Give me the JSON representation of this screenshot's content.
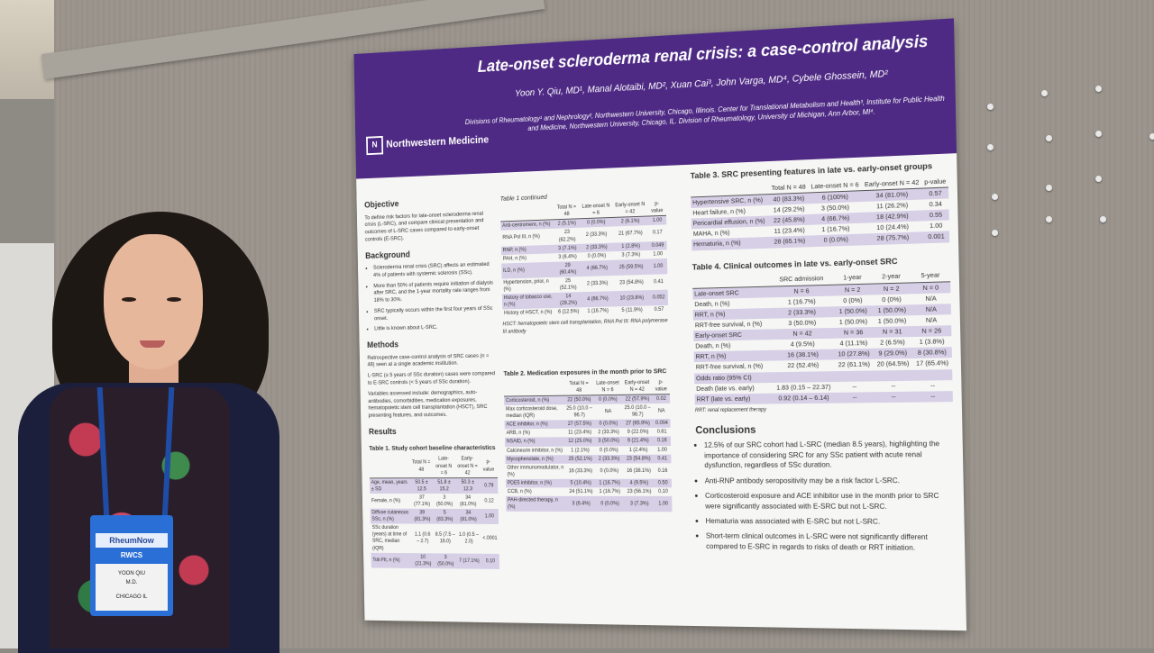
{
  "poster": {
    "title": "Late-onset scleroderma renal crisis: a case-control analysis",
    "authors": "Yoon Y. Qiu, MD¹, Manal Alotaibi, MD², Xuan Cai³, John Varga, MD⁴, Cybele Ghossein, MD²",
    "affiliations": "Divisions of Rheumatology¹ and Nephrology², Northwestern University, Chicago, Illinois. Center for Translational Metabolism and Health³, Institute for Public Health and Medicine, Northwestern University, Chicago, IL. Division of Rheumatology, University of Michigan, Ann Arbor, MI⁴.",
    "logo": "Northwestern Medicine",
    "objective": {
      "heading": "Objective",
      "text": "To define risk factors for late-onset scleroderma renal crisis (L-SRC), and compare clinical presentation and outcomes of L-SRC cases compared to early-onset controls (E-SRC)."
    },
    "background": {
      "heading": "Background",
      "items": [
        "Scleroderma renal crisis (SRC) affects an estimated 4% of patients with systemic sclerosis (SSc).",
        "More than 50% of patients require initiation of dialysis after SRC, and the 1-year mortality rate ranges from 18% to 30%.",
        "SRC typically occurs within the first four years of SSc onset.",
        "Little is known about L-SRC."
      ]
    },
    "methods": {
      "heading": "Methods",
      "paras": [
        "Retrospective case-control analysis of SRC cases (n = 48) seen at a single academic institution.",
        "L-SRC (≥ 5 years of SSc duration) cases were compared to E-SRC controls (< 5 years of SSc duration).",
        "Variables assessed include: demographics, auto-antibodies, comorbidities, medication exposures, hematopoietic stem cell transplantation (HSCT), SRC presenting features, and outcomes."
      ]
    },
    "results": {
      "heading": "Results",
      "table1_title": "Table 1. Study cohort baseline characteristics",
      "table1_head": [
        "",
        "Total N = 48",
        "Late-onset N = 6",
        "Early-onset N = 42",
        "p-value"
      ],
      "table1_rows": [
        [
          "Age, mean, years ± SD",
          "50.5 ± 12.5",
          "51.8 ± 15.2",
          "50.3 ± 12.3",
          "0.79"
        ],
        [
          "Female, n (%)",
          "37 (77.1%)",
          "3 (50.0%)",
          "34 (81.0%)",
          "0.12"
        ],
        [
          "Diffuse cutaneous SSc, n (%)",
          "39 (81.3%)",
          "5 (83.3%)",
          "34 (81.0%)",
          "1.00"
        ],
        [
          "SSc duration (years) at time of SRC, median (IQR)",
          "1.1 (0.6 – 2.7)",
          "8.5 (7.5 – 16.0)",
          "1.0 (0.5 – 2.0)",
          "<.0001"
        ],
        [
          "Tob Flt, n (%)",
          "10 (21.3%)",
          "3 (50.0%)",
          "7 (17.1%)",
          "0.10"
        ]
      ]
    },
    "table1c": {
      "title": "Table 1 continued",
      "head": [
        "",
        "Total N = 48",
        "Late-onset N = 6",
        "Early-onset N = 42",
        "p-value"
      ],
      "rows": [
        [
          "Anti-centromere, n (%)",
          "2 (5.1%)",
          "0 (0.0%)",
          "2 (6.1%)",
          "1.00"
        ],
        [
          "RNA Pol III, n (%)",
          "23 (62.2%)",
          "2 (33.3%)",
          "21 (67.7%)",
          "0.17"
        ],
        [
          "RNP, n (%)",
          "3 (7.1%)",
          "2 (33.3%)",
          "1 (2.8%)",
          "0.049"
        ],
        [
          "PAH, n (%)",
          "3 (6.4%)",
          "0 (0.0%)",
          "3 (7.3%)",
          "1.00"
        ],
        [
          "ILD, n (%)",
          "29 (60.4%)",
          "4 (66.7%)",
          "25 (59.5%)",
          "1.00"
        ],
        [
          "Hypertension, prior, n (%)",
          "25 (52.1%)",
          "2 (33.3%)",
          "23 (54.8%)",
          "0.41"
        ],
        [
          "History of tobacco use, n (%)",
          "14 (29.2%)",
          "4 (66.7%)",
          "10 (23.8%)",
          "0.052"
        ],
        [
          "History of HSCT, n (%)",
          "6 (12.5%)",
          "1 (16.7%)",
          "5 (11.9%)",
          "0.57"
        ]
      ],
      "footnote": "HSCT: hematopoietic stem cell transplantation, RNA Pol III: RNA polymerase III antibody"
    },
    "table2": {
      "title": "Table 2. Medication exposures in the month prior to SRC",
      "head": [
        "",
        "Total N = 48",
        "Late-onset N = 6",
        "Early-onset N = 42",
        "p-value"
      ],
      "rows": [
        [
          "Corticosteroid, n (%)",
          "22 (50.0%)",
          "0 (0.0%)",
          "22 (57.9%)",
          "0.02"
        ],
        [
          "Max corticosteroid dose, median (IQR)",
          "25.0 (10.0 – 96.7)",
          "NA",
          "25.0 (10.0 – 96.7)",
          "NA"
        ],
        [
          "ACE inhibitor, n (%)",
          "27 (57.5%)",
          "0 (0.0%)",
          "27 (65.9%)",
          "0.004"
        ],
        [
          "ARB, n (%)",
          "11 (23.4%)",
          "2 (33.3%)",
          "9 (22.0%)",
          "0.61"
        ],
        [
          "NSAID, n (%)",
          "12 (25.0%)",
          "3 (50.0%)",
          "9 (21.4%)",
          "0.16"
        ],
        [
          "Calcineurin inhibitor, n (%)",
          "1 (2.1%)",
          "0 (0.0%)",
          "1 (2.4%)",
          "1.00"
        ],
        [
          "Mycophenolate, n (%)",
          "25 (52.1%)",
          "2 (33.3%)",
          "23 (54.8%)",
          "0.41"
        ],
        [
          "Other immunomodulator, n (%)",
          "16 (33.3%)",
          "0 (0.0%)",
          "16 (38.1%)",
          "0.16"
        ],
        [
          "PDE5 inhibitor, n (%)",
          "5 (10.4%)",
          "1 (16.7%)",
          "4 (9.5%)",
          "0.50"
        ],
        [
          "CCB, n (%)",
          "24 (51.1%)",
          "1 (16.7%)",
          "23 (56.1%)",
          "0.10"
        ],
        [
          "PAH-directed therapy, n (%)",
          "3 (6.4%)",
          "0 (0.0%)",
          "3 (7.3%)",
          "1.00"
        ]
      ]
    },
    "table3": {
      "title": "Table 3. SRC presenting features in late vs. early-onset groups",
      "head": [
        "",
        "Total N = 48",
        "Late-onset N = 6",
        "Early-onset N = 42",
        "p-value"
      ],
      "rows": [
        [
          "Hypertensive SRC, n (%)",
          "40 (83.3%)",
          "6 (100%)",
          "34 (81.0%)",
          "0.57"
        ],
        [
          "Heart failure, n (%)",
          "14 (29.2%)",
          "3 (50.0%)",
          "11 (26.2%)",
          "0.34"
        ],
        [
          "Pericardial effusion, n (%)",
          "22 (45.8%)",
          "4 (66.7%)",
          "18 (42.9%)",
          "0.55"
        ],
        [
          "MAHA, n (%)",
          "11 (23.4%)",
          "1 (16.7%)",
          "10 (24.4%)",
          "1.00"
        ],
        [
          "Hematuria, n (%)",
          "28 (65.1%)",
          "0 (0.0%)",
          "28 (75.7%)",
          "0.001"
        ]
      ]
    },
    "table4": {
      "title": "Table 4. Clinical outcomes in late vs. early-onset SRC",
      "head": [
        "",
        "SRC admission",
        "1-year",
        "2-year",
        "5-year"
      ],
      "rows": [
        [
          "Late-onset SRC",
          "N = 6",
          "N = 2",
          "N = 2",
          "N = 0"
        ],
        [
          "Death, n (%)",
          "1 (16.7%)",
          "0 (0%)",
          "0 (0%)",
          "N/A"
        ],
        [
          "RRT, n (%)",
          "2 (33.3%)",
          "1 (50.0%)",
          "1 (50.0%)",
          "N/A"
        ],
        [
          "RRT-free survival, n (%)",
          "3 (50.0%)",
          "1 (50.0%)",
          "1 (50.0%)",
          "N/A"
        ],
        [
          "Early-onset SRC",
          "N = 42",
          "N = 36",
          "N = 31",
          "N = 26"
        ],
        [
          "Death, n (%)",
          "4 (9.5%)",
          "4 (11.1%)",
          "2 (6.5%)",
          "1 (3.8%)"
        ],
        [
          "RRT, n (%)",
          "16 (38.1%)",
          "10 (27.8%)",
          "9 (29.0%)",
          "8 (30.8%)"
        ],
        [
          "RRT-free survival, n (%)",
          "22 (52.4%)",
          "22 (61.1%)",
          "20 (64.5%)",
          "17 (65.4%)"
        ],
        [
          "Odds ratio (95% CI)",
          "",
          "",
          "",
          ""
        ],
        [
          "Death (late vs. early)",
          "1.83 (0.15 – 22.37)",
          "--",
          "--",
          "--"
        ],
        [
          "RRT (late vs. early)",
          "0.92 (0.14 – 6.14)",
          "--",
          "--",
          "--"
        ]
      ],
      "footnote": "RRT: renal replacement therapy"
    },
    "conclusions": {
      "heading": "Conclusions",
      "items": [
        "12.5% of our SRC cohort had L-SRC (median 8.5 years), highlighting the importance of considering SRC for any SSc patient with acute renal dysfunction, regardless of SSc duration.",
        "Anti-RNP antibody seropositivity may be a risk factor L-SRC.",
        "Corticosteroid exposure and ACE inhibitor use in the month prior to SRC were significantly associated with E-SRC but not L-SRC.",
        "Hematuria was associated with E-SRC but not L-SRC.",
        "Short-term clinical outcomes in L-SRC were not significantly different compared to E-SRC in regards to risks of death or RRT initiation."
      ]
    }
  },
  "badge": {
    "brand": "RheumNow",
    "event": "RWCS",
    "name": "YOON QIU",
    "credential": "M.D.",
    "city": "CHICAGO IL"
  }
}
